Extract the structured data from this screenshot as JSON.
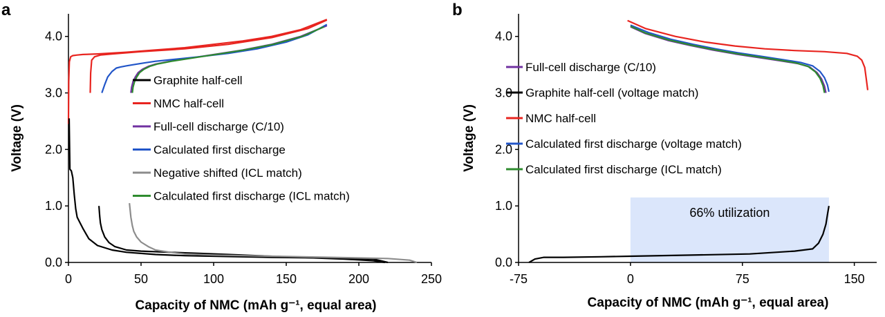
{
  "chart_data": [
    {
      "panel": "a",
      "type": "line",
      "xlabel": "Capacity of NMC (mAh g⁻¹, equal area)",
      "ylabel": "Voltage (V)",
      "xlim": [
        0,
        250
      ],
      "ylim": [
        0,
        4.4
      ],
      "xticks": [
        "0",
        "50",
        "100",
        "150",
        "200",
        "250"
      ],
      "yticks": [
        "0.0",
        "1.0",
        "2.0",
        "3.0",
        "4.0"
      ],
      "legend_position": "center",
      "series": [
        {
          "name": "Graphite half-cell",
          "color": "#000000",
          "x": [
            0.5,
            1,
            2,
            3,
            4,
            5,
            6,
            8,
            10,
            14,
            20,
            30,
            40,
            60,
            80,
            100,
            140,
            180,
            210,
            220
          ],
          "y": [
            2.55,
            1.65,
            1.62,
            1.5,
            1.2,
            0.95,
            0.8,
            0.7,
            0.6,
            0.42,
            0.3,
            0.22,
            0.18,
            0.14,
            0.12,
            0.11,
            0.09,
            0.08,
            0.06,
            0.0
          ]
        },
        {
          "name": "NMC half-cell",
          "color": "#e8241f",
          "x": [
            15,
            15.3,
            16,
            18,
            22,
            30,
            50,
            80,
            110,
            140,
            165,
            178
          ],
          "y": [
            3.0,
            3.35,
            3.58,
            3.64,
            3.67,
            3.69,
            3.73,
            3.78,
            3.86,
            3.98,
            4.14,
            4.29
          ]
        },
        {
          "name": "Full-cell discharge (C/10)",
          "color": "#7030a0",
          "x": [
            43,
            43.5,
            44.5,
            46,
            48,
            51,
            55,
            60,
            70,
            85,
            100,
            120,
            140,
            160,
            178
          ],
          "y": [
            3.0,
            3.1,
            3.2,
            3.28,
            3.36,
            3.42,
            3.47,
            3.51,
            3.56,
            3.62,
            3.68,
            3.76,
            3.86,
            4.0,
            4.19
          ]
        },
        {
          "name": "Calculated first discharge",
          "color": "#2155c8",
          "x": [
            23,
            25,
            27,
            30,
            33,
            36,
            40,
            45,
            52,
            60,
            75,
            90,
            110,
            130,
            150,
            165,
            178
          ],
          "y": [
            3.0,
            3.15,
            3.28,
            3.38,
            3.44,
            3.46,
            3.48,
            3.5,
            3.53,
            3.56,
            3.6,
            3.64,
            3.7,
            3.78,
            3.9,
            4.03,
            4.21
          ]
        },
        {
          "name": "Negative shifted (ICL match)",
          "color": "#8c8c8c",
          "x": [
            42,
            43,
            44,
            45,
            47,
            50,
            55,
            60,
            70,
            80,
            100,
            140,
            180,
            220,
            235,
            240
          ],
          "y": [
            1.05,
            0.8,
            0.65,
            0.55,
            0.45,
            0.36,
            0.28,
            0.22,
            0.18,
            0.15,
            0.13,
            0.11,
            0.09,
            0.07,
            0.04,
            0.0
          ]
        },
        {
          "name": "Calculated first discharge (ICL match)",
          "color": "#2e8b2e",
          "x": [
            44,
            44.5,
            45.5,
            47,
            49,
            52,
            56,
            61,
            71,
            86,
            101,
            121,
            141,
            161,
            176
          ],
          "y": [
            3.0,
            3.1,
            3.2,
            3.28,
            3.36,
            3.42,
            3.47,
            3.51,
            3.56,
            3.62,
            3.68,
            3.76,
            3.86,
            4.0,
            4.17
          ]
        }
      ],
      "extra_curves": [
        {
          "color": "#000000",
          "x": [
            21,
            21.5,
            22,
            23,
            25,
            28,
            32,
            40,
            50,
            70,
            90,
            110,
            130,
            150,
            170,
            190,
            210,
            218
          ],
          "y": [
            1.0,
            0.82,
            0.7,
            0.58,
            0.45,
            0.35,
            0.28,
            0.22,
            0.2,
            0.18,
            0.16,
            0.14,
            0.12,
            0.1,
            0.08,
            0.06,
            0.03,
            0.0
          ]
        },
        {
          "color": "#e8241f",
          "x": [
            0,
            0.2,
            0.6,
            1.5,
            3,
            6,
            10,
            20,
            40,
            60,
            80,
            100,
            120,
            140,
            160,
            178
          ],
          "y": [
            2.45,
            3.2,
            3.55,
            3.64,
            3.66,
            3.67,
            3.68,
            3.69,
            3.72,
            3.76,
            3.8,
            3.86,
            3.92,
            4.0,
            4.12,
            4.3
          ]
        }
      ]
    },
    {
      "panel": "b",
      "type": "line",
      "xlabel": "Capacity of NMC (mAh g⁻¹, equal area)",
      "ylabel": "Voltage (V)",
      "xlim": [
        -75,
        165
      ],
      "ylim": [
        0,
        4.4
      ],
      "xticks": [
        "-75",
        "0",
        "75",
        "150"
      ],
      "yticks": [
        "0.0",
        "1.0",
        "2.0",
        "3.0",
        "4.0"
      ],
      "legend_position": "top-left",
      "annotation": {
        "text": "66% utilization",
        "x_range": [
          0,
          133
        ],
        "y_range": [
          0,
          1.15
        ]
      },
      "series": [
        {
          "name": "Full-cell discharge (C/10)",
          "color": "#7030a0",
          "x": [
            0,
            10,
            25,
            40,
            55,
            70,
            85,
            100,
            112,
            120,
            125,
            128,
            130,
            131
          ],
          "y": [
            4.17,
            4.05,
            3.93,
            3.84,
            3.76,
            3.69,
            3.63,
            3.57,
            3.52,
            3.46,
            3.36,
            3.25,
            3.12,
            3.0
          ]
        },
        {
          "name": "Graphite half-cell (voltage match)",
          "color": "#000000",
          "x": [
            -68,
            -64,
            -58,
            -45,
            -20,
            0,
            40,
            80,
            110,
            122,
            126,
            129,
            131,
            132,
            133
          ],
          "y": [
            0.0,
            0.06,
            0.09,
            0.09,
            0.1,
            0.11,
            0.13,
            0.15,
            0.2,
            0.24,
            0.34,
            0.5,
            0.68,
            0.85,
            1.0
          ]
        },
        {
          "name": "NMC half-cell",
          "color": "#e8241f",
          "x": [
            -2,
            10,
            30,
            50,
            70,
            90,
            110,
            130,
            145,
            152,
            155,
            157,
            158,
            159
          ],
          "y": [
            4.28,
            4.14,
            4.0,
            3.9,
            3.83,
            3.78,
            3.75,
            3.73,
            3.7,
            3.65,
            3.58,
            3.45,
            3.25,
            3.05
          ]
        },
        {
          "name": "Calculated first discharge (voltage match)",
          "color": "#2155c8",
          "x": [
            0,
            12,
            27,
            42,
            57,
            72,
            87,
            102,
            114,
            122,
            127,
            130,
            132,
            133
          ],
          "y": [
            4.2,
            4.07,
            3.95,
            3.86,
            3.78,
            3.71,
            3.65,
            3.59,
            3.54,
            3.48,
            3.38,
            3.27,
            3.14,
            3.02
          ]
        },
        {
          "name": "Calculated first discharge (ICL match)",
          "color": "#2e8b2e",
          "x": [
            0,
            10,
            25,
            40,
            55,
            70,
            85,
            100,
            111,
            119,
            124,
            127,
            129,
            130
          ],
          "y": [
            4.18,
            4.06,
            3.94,
            3.85,
            3.77,
            3.7,
            3.64,
            3.58,
            3.53,
            3.47,
            3.37,
            3.26,
            3.13,
            3.0
          ]
        }
      ]
    }
  ]
}
